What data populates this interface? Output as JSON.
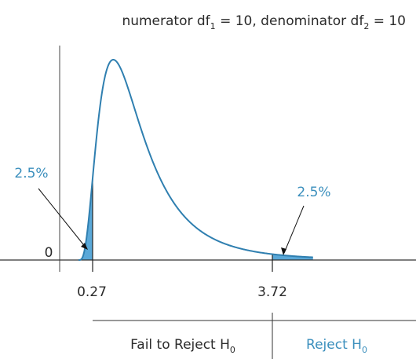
{
  "title": {
    "prefix": "numerator df",
    "sub1": "1",
    "mid": " = 10, denominator df",
    "sub2": "2",
    "suffix": " = 10"
  },
  "y_origin_label": "0",
  "left_tail": {
    "percent_label": "2.5%",
    "critical_value": "0.27"
  },
  "right_tail": {
    "percent_label": "2.5%",
    "critical_value": "3.72"
  },
  "decision": {
    "fail_text": "Fail to Reject H",
    "fail_sub": "0",
    "reject_text": "Reject H",
    "reject_sub": "0"
  },
  "chart_data": {
    "type": "area",
    "distribution": "F",
    "df1": 10,
    "df2": 10,
    "shaded_tails": [
      {
        "from": 0,
        "to": 0.27,
        "area": 0.025
      },
      {
        "from": 3.72,
        "to": 4.5,
        "area": 0.025
      }
    ]
  },
  "colors": {
    "curve": "#2f7fb0",
    "shade": "#5aa8d8",
    "blue_text": "#3b8fbd",
    "dark_text": "#2b2b2b",
    "axis": "#333333"
  }
}
